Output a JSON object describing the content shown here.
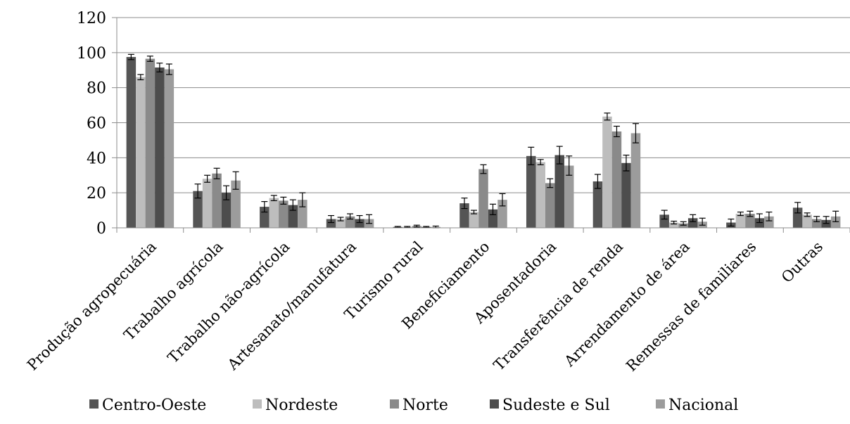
{
  "chart_data": {
    "type": "bar",
    "title": "",
    "xlabel": "",
    "ylabel": "",
    "ylim": [
      0,
      120
    ],
    "yticks": [
      0,
      20,
      40,
      60,
      80,
      100,
      120
    ],
    "grid": true,
    "legend_position": "bottom",
    "categories": [
      "Produção agropecuária",
      "Trabalho agrícola",
      "Trabalho não-agrícola",
      "Artesanato/manufatura",
      "Turismo rural",
      "Beneficiamento",
      "Aposentadoria",
      "Transferência de renda",
      "Arrendamento de área",
      "Remessas de familiares",
      "Outras"
    ],
    "series": [
      {
        "name": "Centro-Oeste",
        "color": "#555555",
        "values": [
          97.5,
          21,
          12,
          5,
          0.5,
          14,
          41,
          26.5,
          7.5,
          3,
          11.5
        ],
        "errors": [
          1.5,
          4,
          3,
          2,
          0.3,
          3,
          5,
          4,
          2.5,
          2,
          3
        ]
      },
      {
        "name": "Nordeste",
        "color": "#bdbdbd",
        "values": [
          86,
          28,
          17,
          5,
          0.5,
          9,
          37.5,
          63.5,
          3,
          8,
          7.5
        ],
        "errors": [
          1.5,
          2,
          1.5,
          1,
          0.3,
          1,
          1.5,
          2,
          0.8,
          1,
          1
        ]
      },
      {
        "name": "Norte",
        "color": "#8a8a8a",
        "values": [
          96.5,
          31,
          15.5,
          6.5,
          1,
          33.5,
          25.5,
          55,
          2.5,
          8,
          5
        ],
        "errors": [
          1.5,
          3,
          2,
          1.5,
          0.5,
          2.5,
          2.5,
          3,
          1,
          1.5,
          1.5
        ]
      },
      {
        "name": "Sudeste e Sul",
        "color": "#4d4d4d",
        "values": [
          91.5,
          20,
          13,
          5,
          0.5,
          10.5,
          41.5,
          37,
          5.5,
          5.5,
          4.5
        ],
        "errors": [
          2.5,
          4,
          3,
          2,
          0.3,
          3,
          5,
          4.5,
          2,
          2.5,
          2
        ]
      },
      {
        "name": "Nacional",
        "color": "#9c9c9c",
        "values": [
          90.5,
          27,
          16,
          5,
          0.5,
          16,
          35.5,
          54,
          3.5,
          6.5,
          6.5
        ],
        "errors": [
          3,
          5,
          4,
          2.5,
          0.5,
          3.5,
          5.5,
          5.5,
          2,
          2.5,
          3
        ]
      }
    ]
  }
}
